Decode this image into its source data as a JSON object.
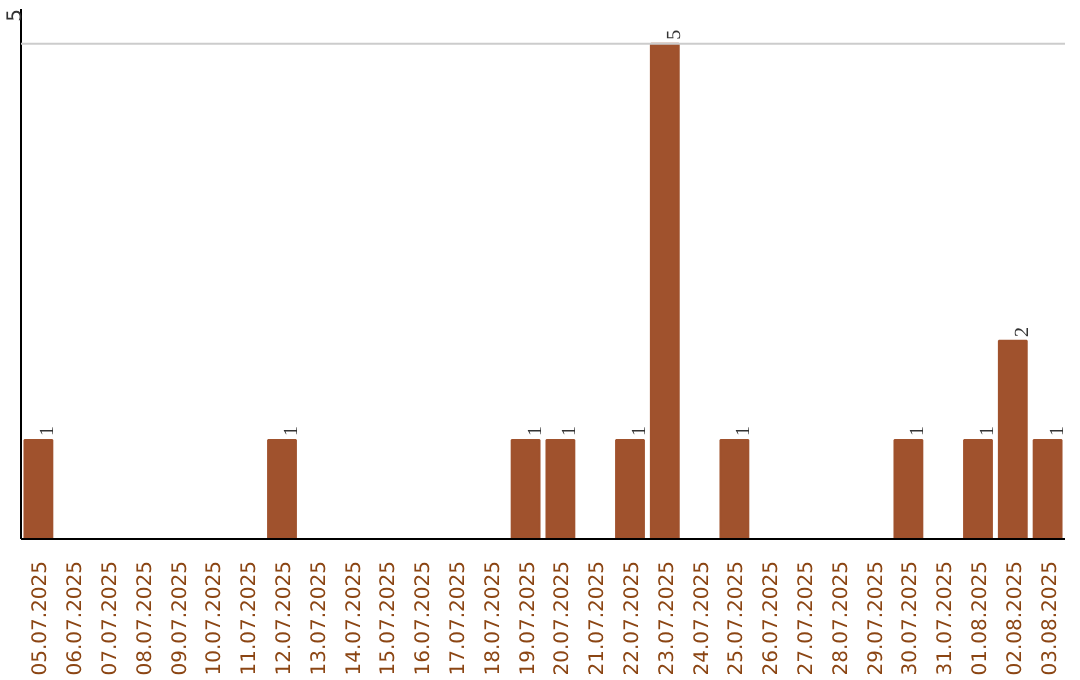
{
  "chart_data": {
    "type": "bar",
    "categories": [
      "05.07.2025",
      "06.07.2025",
      "07.07.2025",
      "08.07.2025",
      "09.07.2025",
      "10.07.2025",
      "11.07.2025",
      "12.07.2025",
      "13.07.2025",
      "14.07.2025",
      "15.07.2025",
      "16.07.2025",
      "17.07.2025",
      "18.07.2025",
      "19.07.2025",
      "20.07.2025",
      "21.07.2025",
      "22.07.2025",
      "23.07.2025",
      "24.07.2025",
      "25.07.2025",
      "26.07.2025",
      "27.07.2025",
      "28.07.2025",
      "29.07.2025",
      "30.07.2025",
      "31.07.2025",
      "01.08.2025",
      "02.08.2025",
      "03.08.2025"
    ],
    "values": [
      1,
      0,
      0,
      0,
      0,
      0,
      0,
      1,
      0,
      0,
      0,
      0,
      0,
      0,
      1,
      1,
      0,
      1,
      5,
      0,
      1,
      0,
      0,
      0,
      0,
      1,
      0,
      1,
      2,
      1
    ],
    "value_labels": [
      "1",
      null,
      null,
      null,
      null,
      null,
      null,
      "1",
      null,
      null,
      null,
      null,
      null,
      null,
      "1",
      "1",
      null,
      "1",
      "5",
      null,
      "1",
      null,
      null,
      null,
      null,
      "1",
      null,
      "1",
      "2",
      "1"
    ],
    "color": "#a0522d",
    "annotations": [
      "5"
    ],
    "ref_lines": [
      {
        "axis": "y",
        "value": 5,
        "color": "#cccccc"
      }
    ]
  }
}
